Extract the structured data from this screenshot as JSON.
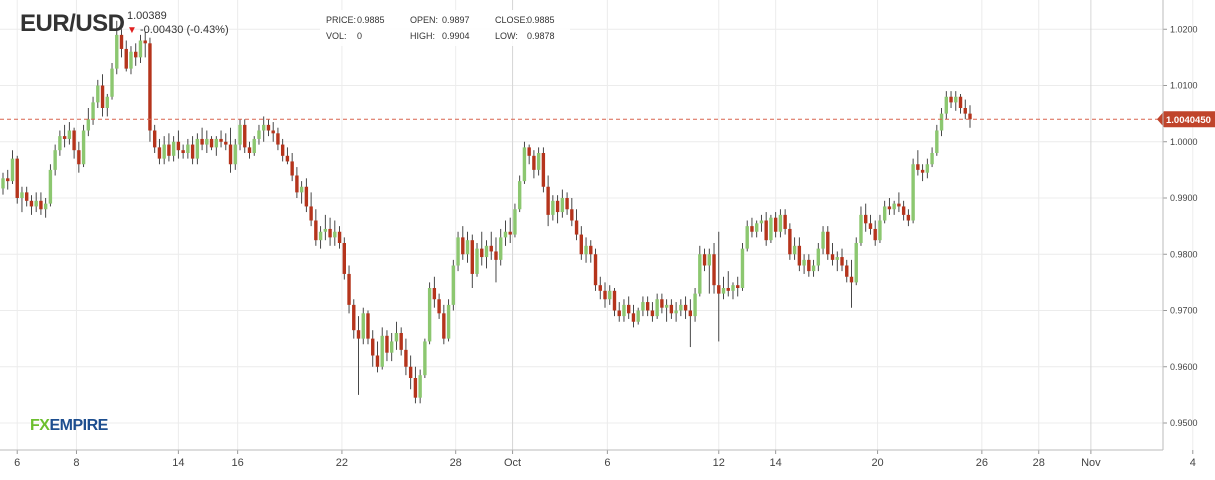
{
  "header": {
    "symbol": "EUR/USD",
    "price": "1.00389",
    "change": "-0.00430 (-0.43%)",
    "change_direction": "down"
  },
  "ohlc": {
    "price_label": "PRICE:",
    "price_value": "0.9885",
    "vol_label": "VOL:",
    "vol_value": "0",
    "open_label": "OPEN:",
    "open_value": "0.9897",
    "high_label": "HIGH:",
    "high_value": "0.9904",
    "close_label": "CLOSE:",
    "close_value": "0.9885",
    "low_label": "LOW:",
    "low_value": "0.9878"
  },
  "logo": {
    "part1": "FX",
    "part2": "EMPIRE"
  },
  "colors": {
    "up": "#8cc770",
    "down": "#b5341c",
    "wick": "#333333",
    "grid": "#ececec",
    "price_line": "#d9634e",
    "price_tag": "#c0442b"
  },
  "chart_data": {
    "type": "candlestick",
    "title": "",
    "xlabel": "",
    "ylabel": "",
    "ylim": [
      0.9452,
      1.0252
    ],
    "y_ticks": [
      "1.0200",
      "1.0100",
      "1.0000",
      "0.9900",
      "0.9800",
      "0.9700",
      "0.9600",
      "0.9500"
    ],
    "x_ticks": [
      "6",
      "8",
      "14",
      "16",
      "22",
      "28",
      "Oct",
      "6",
      "12",
      "14",
      "20",
      "26",
      "28",
      "Nov",
      "4"
    ],
    "current_price": 1.004,
    "current_price_label": "1.0040450",
    "grid": true,
    "candles": [
      [
        0.9917,
        0.9945,
        0.9906,
        0.9935
      ],
      [
        0.9935,
        0.995,
        0.9915,
        0.993
      ],
      [
        0.993,
        0.9985,
        0.9925,
        0.997
      ],
      [
        0.997,
        0.9975,
        0.989,
        0.99
      ],
      [
        0.99,
        0.992,
        0.9875,
        0.991
      ],
      [
        0.991,
        0.992,
        0.9885,
        0.9895
      ],
      [
        0.9895,
        0.9905,
        0.987,
        0.9885
      ],
      [
        0.9885,
        0.991,
        0.9875,
        0.9895
      ],
      [
        0.9895,
        0.991,
        0.987,
        0.988
      ],
      [
        0.988,
        0.99,
        0.9865,
        0.989
      ],
      [
        0.989,
        0.996,
        0.9885,
        0.995
      ],
      [
        0.995,
        0.9995,
        0.994,
        0.9985
      ],
      [
        0.9985,
        1.002,
        0.9975,
        1.001
      ],
      [
        1.001,
        1.003,
        0.999,
        1.0005
      ],
      [
        1.0005,
        1.0035,
        0.9995,
        1.002
      ],
      [
        1.002,
        1.0025,
        0.997,
        0.9985
      ],
      [
        0.9985,
        1.0,
        0.9945,
        0.996
      ],
      [
        0.996,
        1.003,
        0.9955,
        1.002
      ],
      [
        1.002,
        1.006,
        1.001,
        1.004
      ],
      [
        1.004,
        1.008,
        1.003,
        1.007
      ],
      [
        1.007,
        1.011,
        1.006,
        1.01
      ],
      [
        1.01,
        1.012,
        1.0045,
        1.006
      ],
      [
        1.006,
        1.0085,
        1.0045,
        1.008
      ],
      [
        1.008,
        1.014,
        1.0075,
        1.013
      ],
      [
        1.013,
        1.0215,
        1.012,
        1.019
      ],
      [
        1.019,
        1.02,
        1.015,
        1.0165
      ],
      [
        1.0165,
        1.018,
        1.0125,
        1.013
      ],
      [
        1.013,
        1.017,
        1.012,
        1.016
      ],
      [
        1.016,
        1.0175,
        1.0135,
        1.015
      ],
      [
        1.015,
        1.019,
        1.014,
        1.018
      ],
      [
        1.018,
        1.0195,
        1.015,
        1.0175
      ],
      [
        1.0175,
        1.0185,
        1.0,
        1.002
      ],
      [
        1.002,
        1.003,
        0.998,
        0.999
      ],
      [
        0.999,
        1.0005,
        0.996,
        0.997
      ],
      [
        0.997,
        1.001,
        0.996,
        0.9995
      ],
      [
        0.9995,
        1.0015,
        0.9965,
        0.9975
      ],
      [
        0.9975,
        1.001,
        0.9965,
        1.0
      ],
      [
        1.0,
        1.002,
        0.997,
        0.9985
      ],
      [
        0.9985,
        0.9995,
        0.997,
        0.998
      ],
      [
        0.998,
        1.0005,
        0.997,
        0.9995
      ],
      [
        0.9995,
        1.001,
        0.996,
        0.997
      ],
      [
        0.997,
        1.0015,
        0.996,
        1.0005
      ],
      [
        1.0005,
        1.0025,
        0.9985,
        0.9995
      ],
      [
        0.9995,
        1.002,
        0.998,
        1.0005
      ],
      [
        1.0005,
        1.001,
        0.9985,
        0.999
      ],
      [
        0.999,
        1.001,
        0.9975,
        1.0005
      ],
      [
        1.0005,
        1.002,
        0.999,
        1.0
      ],
      [
        1.0,
        1.0015,
        0.9985,
        0.9995
      ],
      [
        0.9995,
        1.0025,
        0.9945,
        0.996
      ],
      [
        0.996,
        1.0005,
        0.995,
        0.9995
      ],
      [
        0.9995,
        1.004,
        0.9985,
        1.003
      ],
      [
        1.003,
        1.004,
        0.998,
        0.999
      ],
      [
        0.999,
        1.0,
        0.997,
        0.998
      ],
      [
        0.998,
        1.001,
        0.9975,
        1.0005
      ],
      [
        1.0005,
        1.003,
        0.9995,
        1.002
      ],
      [
        1.002,
        1.0045,
        1.0,
        1.003
      ],
      [
        1.003,
        1.004,
        1.001,
        1.002
      ],
      [
        1.002,
        1.0035,
        1.0,
        1.0015
      ],
      [
        1.0015,
        1.0025,
        0.9985,
        0.9995
      ],
      [
        0.9995,
        1.0005,
        0.9965,
        0.9975
      ],
      [
        0.9975,
        0.999,
        0.996,
        0.9965
      ],
      [
        0.9965,
        0.998,
        0.993,
        0.994
      ],
      [
        0.994,
        0.9955,
        0.99,
        0.991
      ],
      [
        0.991,
        0.993,
        0.989,
        0.992
      ],
      [
        0.992,
        0.9935,
        0.9875,
        0.9885
      ],
      [
        0.9885,
        0.991,
        0.985,
        0.986
      ],
      [
        0.986,
        0.988,
        0.9815,
        0.9825
      ],
      [
        0.9825,
        0.985,
        0.981,
        0.984
      ],
      [
        0.984,
        0.987,
        0.9825,
        0.9845
      ],
      [
        0.9845,
        0.9865,
        0.9815,
        0.983
      ],
      [
        0.983,
        0.986,
        0.9815,
        0.984
      ],
      [
        0.984,
        0.985,
        0.981,
        0.982
      ],
      [
        0.982,
        0.983,
        0.9755,
        0.9765
      ],
      [
        0.9765,
        0.978,
        0.9695,
        0.971
      ],
      [
        0.971,
        0.972,
        0.965,
        0.9665
      ],
      [
        0.9665,
        0.969,
        0.955,
        0.965
      ],
      [
        0.965,
        0.9705,
        0.964,
        0.9695
      ],
      [
        0.9695,
        0.97,
        0.964,
        0.965
      ],
      [
        0.965,
        0.9665,
        0.96,
        0.962
      ],
      [
        0.962,
        0.9645,
        0.959,
        0.96
      ],
      [
        0.96,
        0.967,
        0.9595,
        0.9655
      ],
      [
        0.9655,
        0.9665,
        0.961,
        0.9625
      ],
      [
        0.9625,
        0.966,
        0.961,
        0.9645
      ],
      [
        0.9645,
        0.968,
        0.963,
        0.966
      ],
      [
        0.966,
        0.967,
        0.962,
        0.963
      ],
      [
        0.963,
        0.965,
        0.9585,
        0.96
      ],
      [
        0.96,
        0.962,
        0.956,
        0.958
      ],
      [
        0.958,
        0.96,
        0.9535,
        0.9545
      ],
      [
        0.9545,
        0.9595,
        0.9535,
        0.9585
      ],
      [
        0.9585,
        0.965,
        0.958,
        0.9645
      ],
      [
        0.9645,
        0.975,
        0.964,
        0.974
      ],
      [
        0.974,
        0.976,
        0.9705,
        0.972
      ],
      [
        0.972,
        0.973,
        0.9685,
        0.9695
      ],
      [
        0.9695,
        0.971,
        0.964,
        0.965
      ],
      [
        0.965,
        0.972,
        0.9645,
        0.971
      ],
      [
        0.971,
        0.979,
        0.97,
        0.978
      ],
      [
        0.978,
        0.984,
        0.977,
        0.983
      ],
      [
        0.983,
        0.985,
        0.979,
        0.98
      ],
      [
        0.98,
        0.984,
        0.9785,
        0.9825
      ],
      [
        0.9825,
        0.9835,
        0.974,
        0.9765
      ],
      [
        0.9765,
        0.982,
        0.976,
        0.981
      ],
      [
        0.981,
        0.984,
        0.978,
        0.9795
      ],
      [
        0.9795,
        0.9825,
        0.9775,
        0.9815
      ],
      [
        0.9815,
        0.984,
        0.979,
        0.9805
      ],
      [
        0.9805,
        0.983,
        0.975,
        0.979
      ],
      [
        0.979,
        0.9845,
        0.978,
        0.983
      ],
      [
        0.983,
        0.986,
        0.9815,
        0.984
      ],
      [
        0.984,
        0.9865,
        0.982,
        0.9835
      ],
      [
        0.9835,
        0.989,
        0.983,
        0.988
      ],
      [
        0.988,
        0.994,
        0.9875,
        0.993
      ],
      [
        0.993,
        1.0,
        0.9925,
        0.999
      ],
      [
        0.999,
        0.9995,
        0.996,
        0.9975
      ],
      [
        0.9975,
        0.9985,
        0.9935,
        0.995
      ],
      [
        0.995,
        0.999,
        0.994,
        0.998
      ],
      [
        0.998,
        0.999,
        0.991,
        0.992
      ],
      [
        0.992,
        0.994,
        0.985,
        0.987
      ],
      [
        0.987,
        0.9905,
        0.986,
        0.9895
      ],
      [
        0.9895,
        0.9905,
        0.9855,
        0.9875
      ],
      [
        0.9875,
        0.9915,
        0.9865,
        0.99
      ],
      [
        0.99,
        0.991,
        0.987,
        0.988
      ],
      [
        0.988,
        0.99,
        0.985,
        0.986
      ],
      [
        0.986,
        0.988,
        0.9825,
        0.9835
      ],
      [
        0.9835,
        0.985,
        0.979,
        0.98
      ],
      [
        0.98,
        0.983,
        0.9785,
        0.9815
      ],
      [
        0.9815,
        0.9825,
        0.9785,
        0.98
      ],
      [
        0.98,
        0.981,
        0.9735,
        0.9745
      ],
      [
        0.9745,
        0.976,
        0.972,
        0.9735
      ],
      [
        0.9735,
        0.975,
        0.9705,
        0.972
      ],
      [
        0.972,
        0.9745,
        0.971,
        0.9735
      ],
      [
        0.9735,
        0.974,
        0.969,
        0.97
      ],
      [
        0.97,
        0.9715,
        0.968,
        0.969
      ],
      [
        0.969,
        0.972,
        0.968,
        0.971
      ],
      [
        0.971,
        0.9725,
        0.9685,
        0.9695
      ],
      [
        0.9695,
        0.971,
        0.967,
        0.968
      ],
      [
        0.968,
        0.9705,
        0.9675,
        0.97
      ],
      [
        0.97,
        0.9725,
        0.969,
        0.9715
      ],
      [
        0.9715,
        0.9725,
        0.969,
        0.97
      ],
      [
        0.97,
        0.9715,
        0.968,
        0.969
      ],
      [
        0.969,
        0.973,
        0.9685,
        0.972
      ],
      [
        0.972,
        0.973,
        0.9695,
        0.9705
      ],
      [
        0.9705,
        0.972,
        0.968,
        0.971
      ],
      [
        0.971,
        0.972,
        0.9685,
        0.9695
      ],
      [
        0.9695,
        0.9715,
        0.968,
        0.97
      ],
      [
        0.97,
        0.972,
        0.969,
        0.971
      ],
      [
        0.971,
        0.9725,
        0.9685,
        0.97
      ],
      [
        0.97,
        0.972,
        0.9635,
        0.969
      ],
      [
        0.969,
        0.974,
        0.968,
        0.973
      ],
      [
        0.973,
        0.9815,
        0.9725,
        0.98
      ],
      [
        0.98,
        0.981,
        0.977,
        0.978
      ],
      [
        0.978,
        0.981,
        0.973,
        0.98
      ],
      [
        0.98,
        0.982,
        0.973,
        0.9745
      ],
      [
        0.9745,
        0.984,
        0.9645,
        0.973
      ],
      [
        0.973,
        0.976,
        0.972,
        0.974
      ],
      [
        0.974,
        0.977,
        0.9725,
        0.9735
      ],
      [
        0.9735,
        0.975,
        0.972,
        0.9745
      ],
      [
        0.9745,
        0.976,
        0.9725,
        0.974
      ],
      [
        0.974,
        0.982,
        0.9735,
        0.981
      ],
      [
        0.981,
        0.986,
        0.9805,
        0.985
      ],
      [
        0.985,
        0.9865,
        0.983,
        0.984
      ],
      [
        0.984,
        0.986,
        0.983,
        0.9855
      ],
      [
        0.9855,
        0.987,
        0.984,
        0.986
      ],
      [
        0.986,
        0.9875,
        0.9815,
        0.9825
      ],
      [
        0.9825,
        0.987,
        0.982,
        0.9865
      ],
      [
        0.9865,
        0.9875,
        0.983,
        0.984
      ],
      [
        0.984,
        0.988,
        0.983,
        0.987
      ],
      [
        0.987,
        0.988,
        0.9835,
        0.9845
      ],
      [
        0.9845,
        0.9855,
        0.979,
        0.98
      ],
      [
        0.98,
        0.983,
        0.979,
        0.9815
      ],
      [
        0.9815,
        0.983,
        0.977,
        0.978
      ],
      [
        0.978,
        0.98,
        0.9765,
        0.979
      ],
      [
        0.979,
        0.98,
        0.976,
        0.977
      ],
      [
        0.977,
        0.979,
        0.976,
        0.978
      ],
      [
        0.978,
        0.982,
        0.977,
        0.981
      ],
      [
        0.981,
        0.985,
        0.98,
        0.984
      ],
      [
        0.984,
        0.985,
        0.979,
        0.98
      ],
      [
        0.98,
        0.982,
        0.978,
        0.979
      ],
      [
        0.979,
        0.9805,
        0.977,
        0.9795
      ],
      [
        0.9795,
        0.981,
        0.977,
        0.978
      ],
      [
        0.978,
        0.979,
        0.975,
        0.976
      ],
      [
        0.976,
        0.979,
        0.9705,
        0.975
      ],
      [
        0.975,
        0.983,
        0.9745,
        0.982
      ],
      [
        0.982,
        0.9885,
        0.9815,
        0.987
      ],
      [
        0.987,
        0.989,
        0.984,
        0.9855
      ],
      [
        0.9855,
        0.987,
        0.9835,
        0.9845
      ],
      [
        0.9845,
        0.986,
        0.9815,
        0.9825
      ],
      [
        0.9825,
        0.987,
        0.982,
        0.986
      ],
      [
        0.986,
        0.9895,
        0.9855,
        0.9885
      ],
      [
        0.9885,
        0.99,
        0.987,
        0.988
      ],
      [
        0.988,
        0.9895,
        0.987,
        0.989
      ],
      [
        0.989,
        0.991,
        0.9875,
        0.9885
      ],
      [
        0.9885,
        0.9895,
        0.986,
        0.987
      ],
      [
        0.987,
        0.988,
        0.985,
        0.986
      ],
      [
        0.986,
        0.997,
        0.9855,
        0.996
      ],
      [
        0.996,
        0.9985,
        0.994,
        0.995
      ],
      [
        0.995,
        0.996,
        0.993,
        0.9945
      ],
      [
        0.9945,
        0.997,
        0.9935,
        0.996
      ],
      [
        0.996,
        0.999,
        0.9955,
        0.998
      ],
      [
        0.998,
        1.003,
        0.9975,
        1.002
      ],
      [
        1.002,
        1.006,
        1.001,
        1.005
      ],
      [
        1.005,
        1.009,
        1.004,
        1.008
      ],
      [
        1.008,
        1.009,
        1.006,
        1.007
      ],
      [
        1.007,
        1.009,
        1.0055,
        1.008
      ],
      [
        1.008,
        1.0085,
        1.005,
        1.006
      ],
      [
        1.006,
        1.0075,
        1.004,
        1.005
      ],
      [
        1.005,
        1.0065,
        1.0025,
        1.004
      ]
    ]
  }
}
